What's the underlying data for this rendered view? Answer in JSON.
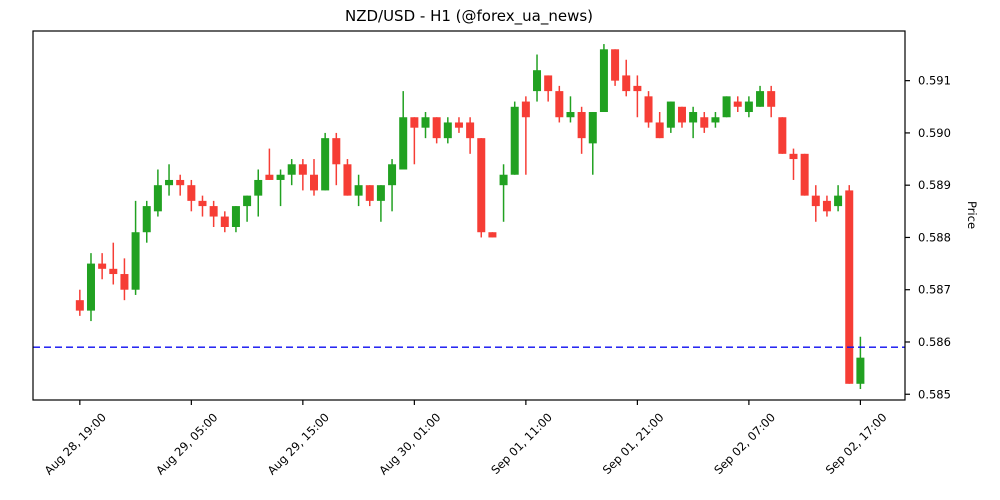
{
  "window": {
    "background": "#ffffff"
  },
  "chart_data": {
    "type": "candlestick",
    "title": "NZD/USD - H1 (@forex_ua_news)",
    "ylabel": "Price",
    "xlabel": "",
    "grid": false,
    "legend": "none",
    "y_axis_side": "right",
    "ylim": [
      0.58489,
      0.59195
    ],
    "xlim": [
      -4.2,
      74.0
    ],
    "y_ticks": [
      0.585,
      0.586,
      0.587,
      0.588,
      0.589,
      0.59,
      0.591
    ],
    "x_tick_indices": [
      0,
      10,
      20,
      30,
      40,
      50,
      60,
      70
    ],
    "x_tick_labels": [
      "Aug 28, 19:00",
      "Aug 29, 05:00",
      "Aug 29, 15:00",
      "Aug 30, 01:00",
      "Sep 01, 11:00",
      "Sep 01, 21:00",
      "Sep 02, 07:00",
      "Sep 02, 17:00"
    ],
    "x_tick_rotation_deg": -45,
    "hline": {
      "value": 0.5859,
      "color": "#0b0bf0",
      "style": "dashed"
    },
    "colors": {
      "up": "#21a121",
      "down": "#f63d35",
      "spine": "#000000"
    },
    "candles_format": "[open, high, low, close] per H1 bar, left to right",
    "candles": [
      [
        0.5868,
        0.587,
        0.5865,
        0.5866
      ],
      [
        0.5866,
        0.5877,
        0.5864,
        0.5875
      ],
      [
        0.5875,
        0.5877,
        0.5872,
        0.5874
      ],
      [
        0.5874,
        0.5879,
        0.5871,
        0.5873
      ],
      [
        0.5873,
        0.5876,
        0.5868,
        0.587
      ],
      [
        0.587,
        0.5887,
        0.5869,
        0.5881
      ],
      [
        0.5881,
        0.5887,
        0.5879,
        0.5886
      ],
      [
        0.5885,
        0.5893,
        0.5884,
        0.589
      ],
      [
        0.589,
        0.5894,
        0.5888,
        0.5891
      ],
      [
        0.5891,
        0.5892,
        0.5888,
        0.589
      ],
      [
        0.589,
        0.5891,
        0.5885,
        0.5887
      ],
      [
        0.5887,
        0.5888,
        0.5884,
        0.5886
      ],
      [
        0.5886,
        0.5887,
        0.5882,
        0.5884
      ],
      [
        0.5884,
        0.5885,
        0.5881,
        0.5882
      ],
      [
        0.5882,
        0.5886,
        0.5881,
        0.5886
      ],
      [
        0.5886,
        0.5888,
        0.5883,
        0.5888
      ],
      [
        0.5888,
        0.5893,
        0.5884,
        0.5891
      ],
      [
        0.5892,
        0.5897,
        0.5891,
        0.5891
      ],
      [
        0.5891,
        0.5893,
        0.5886,
        0.5892
      ],
      [
        0.5892,
        0.5895,
        0.589,
        0.5894
      ],
      [
        0.5894,
        0.5895,
        0.5889,
        0.5892
      ],
      [
        0.5892,
        0.5895,
        0.5888,
        0.5889
      ],
      [
        0.5889,
        0.59,
        0.5889,
        0.5899
      ],
      [
        0.5899,
        0.59,
        0.589,
        0.5894
      ],
      [
        0.5894,
        0.5895,
        0.5888,
        0.5888
      ],
      [
        0.5888,
        0.5892,
        0.5886,
        0.589
      ],
      [
        0.589,
        0.589,
        0.5886,
        0.5887
      ],
      [
        0.5887,
        0.589,
        0.5883,
        0.589
      ],
      [
        0.589,
        0.5895,
        0.5885,
        0.5894
      ],
      [
        0.5893,
        0.5908,
        0.5893,
        0.5903
      ],
      [
        0.5903,
        0.5903,
        0.5894,
        0.5901
      ],
      [
        0.5901,
        0.5904,
        0.5899,
        0.5903
      ],
      [
        0.5903,
        0.5903,
        0.5898,
        0.5899
      ],
      [
        0.5899,
        0.5903,
        0.5898,
        0.5902
      ],
      [
        0.5902,
        0.5903,
        0.59,
        0.5901
      ],
      [
        0.5902,
        0.5903,
        0.5896,
        0.5899
      ],
      [
        0.5899,
        0.5899,
        0.588,
        0.5881
      ],
      [
        0.5881,
        0.5881,
        0.588,
        0.588
      ],
      [
        0.589,
        0.5894,
        0.5883,
        0.5892
      ],
      [
        0.5892,
        0.5906,
        0.5892,
        0.5905
      ],
      [
        0.5906,
        0.5907,
        0.5892,
        0.5903
      ],
      [
        0.5908,
        0.5915,
        0.5906,
        0.5912
      ],
      [
        0.5911,
        0.5911,
        0.5906,
        0.5908
      ],
      [
        0.5908,
        0.5909,
        0.5902,
        0.5903
      ],
      [
        0.5903,
        0.5907,
        0.5902,
        0.5904
      ],
      [
        0.5904,
        0.5905,
        0.5896,
        0.5899
      ],
      [
        0.5898,
        0.5904,
        0.5892,
        0.5904
      ],
      [
        0.5904,
        0.5917,
        0.5904,
        0.5916
      ],
      [
        0.5916,
        0.5916,
        0.5909,
        0.591
      ],
      [
        0.5911,
        0.5914,
        0.5907,
        0.5908
      ],
      [
        0.5909,
        0.5911,
        0.5903,
        0.5908
      ],
      [
        0.5907,
        0.5908,
        0.5901,
        0.5902
      ],
      [
        0.5902,
        0.5904,
        0.5899,
        0.5899
      ],
      [
        0.5901,
        0.5906,
        0.59,
        0.5906
      ],
      [
        0.5905,
        0.5905,
        0.5901,
        0.5902
      ],
      [
        0.5902,
        0.5905,
        0.5899,
        0.5904
      ],
      [
        0.5903,
        0.5904,
        0.59,
        0.5901
      ],
      [
        0.5902,
        0.5904,
        0.5901,
        0.5903
      ],
      [
        0.5903,
        0.5907,
        0.5903,
        0.5907
      ],
      [
        0.5906,
        0.5907,
        0.5904,
        0.5905
      ],
      [
        0.5904,
        0.5907,
        0.5903,
        0.5906
      ],
      [
        0.5905,
        0.5909,
        0.5905,
        0.5908
      ],
      [
        0.5908,
        0.5909,
        0.5903,
        0.5905
      ],
      [
        0.5903,
        0.5903,
        0.5896,
        0.5896
      ],
      [
        0.5896,
        0.5897,
        0.5891,
        0.5895
      ],
      [
        0.5896,
        0.5896,
        0.5888,
        0.5888
      ],
      [
        0.5888,
        0.589,
        0.5883,
        0.5886
      ],
      [
        0.5887,
        0.5888,
        0.5884,
        0.5885
      ],
      [
        0.5886,
        0.589,
        0.5885,
        0.5888
      ],
      [
        0.5889,
        0.589,
        0.5852,
        0.5852
      ],
      [
        0.5852,
        0.5861,
        0.5851,
        0.5857
      ]
    ]
  }
}
